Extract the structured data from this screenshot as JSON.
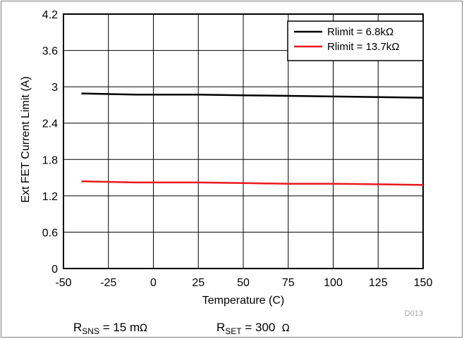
{
  "chart_data": {
    "type": "line",
    "title": "",
    "xlabel": "Temperature (C)",
    "ylabel": "Ext FET Current Limit (A)",
    "xlim": [
      -50,
      150
    ],
    "ylim": [
      0,
      4.2
    ],
    "x_ticks": [
      -50,
      -25,
      0,
      25,
      50,
      75,
      100,
      125,
      150
    ],
    "y_ticks": [
      0,
      0.6,
      1.2,
      1.8,
      2.4,
      3,
      3.6,
      4.2
    ],
    "x_tick_labels": [
      "-50",
      "-25",
      "0",
      "25",
      "50",
      "75",
      "100",
      "125",
      "150"
    ],
    "y_tick_labels": [
      "0",
      "0.6",
      "1.2",
      "1.8",
      "2.4",
      "3",
      "3.6",
      "4.2"
    ],
    "grid": true,
    "legend_position": "top-right",
    "series": [
      {
        "name": "Rlimit = 6.8kΩ",
        "color": "#000000",
        "x": [
          -40,
          -10,
          25,
          50,
          75,
          100,
          125,
          150
        ],
        "y": [
          2.89,
          2.87,
          2.87,
          2.86,
          2.85,
          2.84,
          2.83,
          2.82
        ]
      },
      {
        "name": "Rlimit = 13.7kΩ",
        "color": "#e8191f",
        "x": [
          -40,
          -10,
          25,
          50,
          75,
          100,
          125,
          150
        ],
        "y": [
          1.44,
          1.42,
          1.42,
          1.41,
          1.4,
          1.4,
          1.39,
          1.38
        ]
      }
    ]
  },
  "figure_code": "D013",
  "notes": {
    "rsns_main": "R",
    "rsns_sub": "SNS",
    "rsns_value": " = 15 m",
    "rsns_unit": "Ω",
    "rset_main": "R",
    "rset_sub": "SET",
    "rset_value": " = 300  ",
    "rset_unit": "Ω"
  }
}
